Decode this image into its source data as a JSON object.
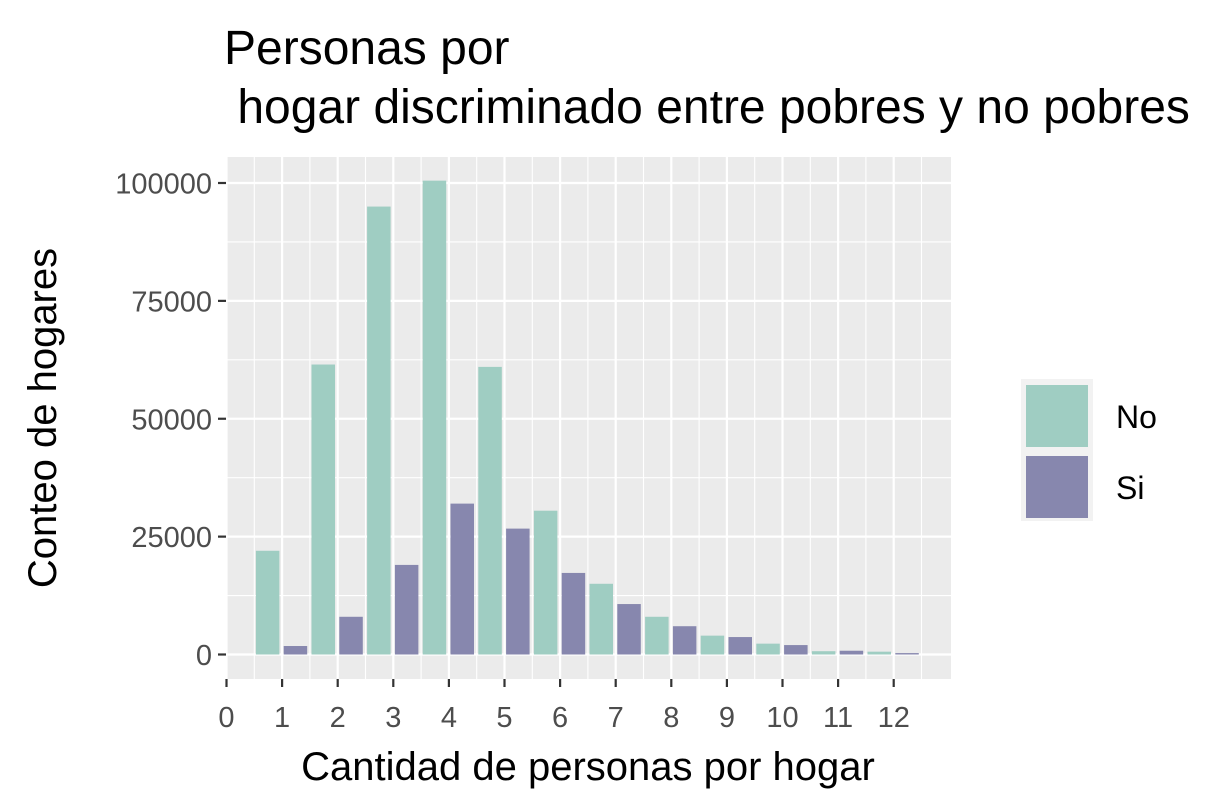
{
  "chart_data": {
    "type": "bar",
    "title": "Personas por\n hogar discriminado entre pobres y no pobres",
    "xlabel": "Cantidad de personas por hogar",
    "ylabel": "Conteo de hogares",
    "x_ticks": [
      "0",
      "1",
      "2",
      "3",
      "4",
      "5",
      "6",
      "7",
      "8",
      "9",
      "10",
      "11",
      "12"
    ],
    "y_ticks": [
      "0",
      "25000",
      "50000",
      "75000",
      "100000"
    ],
    "xlim": [
      0,
      12.6
    ],
    "ylim": [
      -5000,
      105500
    ],
    "categories": [
      1,
      2,
      3,
      4,
      5,
      6,
      7,
      8,
      9,
      10,
      11,
      12
    ],
    "series": [
      {
        "name": "No",
        "color": "#9FCDC2",
        "values": [
          22000,
          61500,
          95000,
          100500,
          61000,
          30500,
          15000,
          8000,
          4000,
          2300,
          700,
          600
        ]
      },
      {
        "name": "Si",
        "color": "#8787AE",
        "values": [
          1800,
          8000,
          19000,
          32000,
          26700,
          17300,
          10700,
          6000,
          3700,
          2000,
          800,
          300
        ]
      }
    ],
    "legend": {
      "position": "right",
      "entries": [
        "No",
        "Si"
      ]
    },
    "grid": true,
    "panel_background": "#EBEBEB",
    "grid_color": "#FFFFFF"
  }
}
